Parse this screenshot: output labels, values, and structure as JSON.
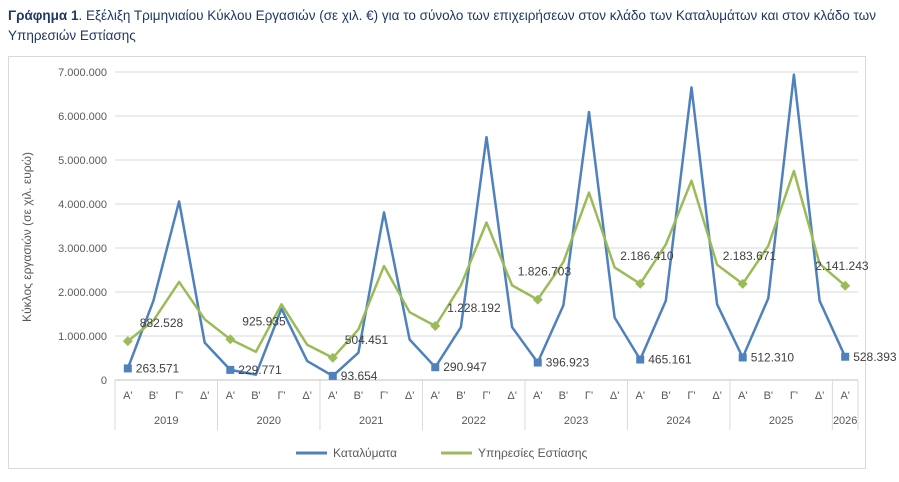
{
  "caption": {
    "label": "Γράφημα 1",
    "text": ". Εξέλιξη Τριμηνιαίου Κύκλου Εργασιών (σε χιλ. €) για το σύνολο των επιχειρήσεων στον κλάδο των Καταλυμάτων και στον κλάδο των Υπηρεσιών Εστίασης"
  },
  "colors": {
    "accommodation": "#4f81bd",
    "food": "#9bbb59",
    "grid": "#d9d9d9",
    "axis": "#bfbfbf"
  },
  "chart_data": {
    "type": "line",
    "title": "",
    "ylabel": "Κύκλος εργασιών (σε χιλ. ευρώ)",
    "xlabel": "",
    "ylim": [
      0,
      7000000
    ],
    "yticks": [
      0,
      1000000,
      2000000,
      3000000,
      4000000,
      5000000,
      6000000,
      7000000
    ],
    "ytick_labels": [
      "0",
      "1.000.000",
      "2.000.000",
      "3.000.000",
      "4.000.000",
      "5.000.000",
      "6.000.000",
      "7.000.000"
    ],
    "quarters": [
      "Α'",
      "Β'",
      "Γ'",
      "Δ'",
      "Α'",
      "Β'",
      "Γ'",
      "Δ'",
      "Α'",
      "Β'",
      "Γ'",
      "Δ'",
      "Α'",
      "Β'",
      "Γ'",
      "Δ'",
      "Α'",
      "Β'",
      "Γ'",
      "Δ'",
      "Α'",
      "Β'",
      "Γ'",
      "Δ'",
      "Α'",
      "Β'",
      "Γ'",
      "Δ'",
      "Α'"
    ],
    "years": [
      {
        "label": "2019",
        "count": 4
      },
      {
        "label": "2020",
        "count": 4
      },
      {
        "label": "2021",
        "count": 4
      },
      {
        "label": "2022",
        "count": 4
      },
      {
        "label": "2023",
        "count": 4
      },
      {
        "label": "2024",
        "count": 4
      },
      {
        "label": "2025",
        "count": 4
      },
      {
        "label": "2026",
        "count": 1
      }
    ],
    "grid": true,
    "legend_position": "bottom",
    "series": [
      {
        "name": "Καταλύματα",
        "color": "#4f81bd",
        "values": [
          263571,
          1800000,
          4060000,
          850000,
          229771,
          120000,
          1620000,
          430000,
          93654,
          620000,
          3810000,
          920000,
          290947,
          1200000,
          5520000,
          1200000,
          396923,
          1700000,
          6090000,
          1420000,
          465161,
          1800000,
          6650000,
          1720000,
          512310,
          1860000,
          6940000,
          1800000,
          528393
        ],
        "labeled": [
          {
            "index": 0,
            "text": "263.571"
          },
          {
            "index": 4,
            "text": "229.771"
          },
          {
            "index": 8,
            "text": "93.654"
          },
          {
            "index": 12,
            "text": "290.947"
          },
          {
            "index": 16,
            "text": "396.923"
          },
          {
            "index": 20,
            "text": "465.161"
          },
          {
            "index": 24,
            "text": "512.310"
          },
          {
            "index": 28,
            "text": "528.393"
          }
        ]
      },
      {
        "name": "Υπηρεσίες Εστίασης",
        "color": "#9bbb59",
        "values": [
          882528,
          1350000,
          2230000,
          1380000,
          925935,
          640000,
          1720000,
          800000,
          504451,
          1150000,
          2590000,
          1540000,
          1228192,
          2150000,
          3580000,
          2150000,
          1826703,
          2680000,
          4260000,
          2560000,
          2186410,
          3080000,
          4530000,
          2620000,
          2183671,
          3050000,
          4750000,
          2640000,
          2141243
        ],
        "labeled": [
          {
            "index": 0,
            "text": "882.528"
          },
          {
            "index": 4,
            "text": "925.935"
          },
          {
            "index": 8,
            "text": "504.451"
          },
          {
            "index": 12,
            "text": "1.228.192"
          },
          {
            "index": 16,
            "text": "1.826.703"
          },
          {
            "index": 20,
            "text": "2.186.410"
          },
          {
            "index": 24,
            "text": "2.183.671"
          },
          {
            "index": 28,
            "text": "2.141.243"
          }
        ]
      }
    ]
  }
}
